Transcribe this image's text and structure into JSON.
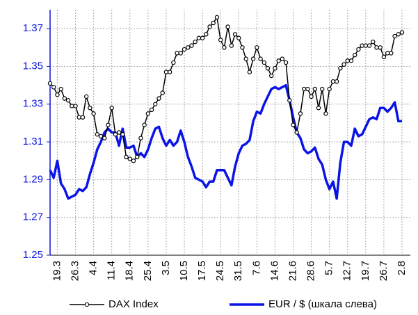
{
  "chart_data": {
    "type": "line",
    "categories": [
      null,
      null,
      "19.3",
      null,
      null,
      null,
      null,
      "26.3",
      null,
      null,
      null,
      null,
      "4.4",
      null,
      null,
      null,
      null,
      "11.4",
      null,
      null,
      null,
      null,
      "18.4",
      null,
      null,
      null,
      null,
      "25.4",
      null,
      null,
      null,
      null,
      "3.5",
      null,
      null,
      null,
      null,
      "10.5",
      null,
      null,
      null,
      null,
      "17.5",
      null,
      null,
      null,
      null,
      "24.5",
      null,
      null,
      null,
      null,
      "31.5",
      null,
      null,
      null,
      null,
      "7.6",
      null,
      null,
      null,
      null,
      "14.6",
      null,
      null,
      null,
      null,
      "21.6",
      null,
      null,
      null,
      null,
      "28.6",
      null,
      null,
      null,
      null,
      "5.7",
      null,
      null,
      null,
      null,
      "12.7",
      null,
      null,
      null,
      null,
      "19.7",
      null,
      null,
      null,
      null,
      "26.7",
      null,
      null,
      null,
      null,
      "2.8"
    ],
    "series": [
      {
        "name": "DAX Index",
        "color": "#000000",
        "markers": true,
        "values": [
          1.341,
          1.339,
          1.335,
          1.338,
          1.333,
          1.332,
          1.329,
          1.329,
          1.323,
          1.323,
          1.334,
          1.328,
          1.325,
          1.314,
          1.313,
          1.312,
          1.319,
          1.328,
          1.314,
          1.315,
          1.314,
          1.302,
          1.301,
          1.3,
          1.302,
          1.312,
          1.319,
          1.325,
          1.327,
          1.33,
          1.333,
          1.336,
          1.347,
          1.347,
          1.352,
          1.357,
          1.357,
          1.359,
          1.36,
          1.361,
          1.363,
          1.365,
          1.365,
          1.367,
          1.371,
          1.373,
          1.376,
          1.364,
          1.36,
          1.371,
          1.361,
          1.367,
          1.365,
          1.36,
          1.354,
          1.347,
          1.354,
          1.36,
          1.354,
          1.352,
          1.349,
          1.345,
          1.349,
          1.353,
          1.354,
          1.352,
          1.332,
          1.319,
          1.315,
          1.325,
          1.338,
          1.338,
          1.334,
          1.338,
          1.328,
          1.338,
          1.325,
          1.338,
          1.342,
          1.342,
          1.349,
          1.351,
          1.353,
          1.353,
          1.356,
          1.359,
          1.361,
          1.361,
          1.361,
          1.363,
          1.36,
          1.36,
          1.355,
          1.357,
          1.357,
          1.366,
          1.367,
          1.368
        ]
      },
      {
        "name": "EUR / $ (шкала слева)",
        "color": "#0a14e6",
        "markers": false,
        "values": [
          1.295,
          1.291,
          1.3,
          1.288,
          1.285,
          1.28,
          1.281,
          1.282,
          1.285,
          1.284,
          1.286,
          1.293,
          1.299,
          1.306,
          1.31,
          1.315,
          1.317,
          1.315,
          1.315,
          1.308,
          1.317,
          1.307,
          1.307,
          1.308,
          1.302,
          1.304,
          1.302,
          1.306,
          1.312,
          1.317,
          1.318,
          1.312,
          1.308,
          1.311,
          1.308,
          1.31,
          1.316,
          1.31,
          1.302,
          1.297,
          1.291,
          1.29,
          1.289,
          1.286,
          1.289,
          1.289,
          1.295,
          1.295,
          1.295,
          1.291,
          1.287,
          1.297,
          1.304,
          1.308,
          1.309,
          1.311,
          1.321,
          1.326,
          1.325,
          1.33,
          1.334,
          1.338,
          1.339,
          1.338,
          1.339,
          1.34,
          1.332,
          1.323,
          1.315,
          1.312,
          1.306,
          1.304,
          1.305,
          1.307,
          1.301,
          1.298,
          1.29,
          1.285,
          1.289,
          1.28,
          1.299,
          1.31,
          1.31,
          1.308,
          1.317,
          1.313,
          1.314,
          1.318,
          1.322,
          1.323,
          1.322,
          1.328,
          1.328,
          1.326,
          1.328,
          1.331,
          1.321,
          1.321
        ]
      }
    ],
    "ylim": [
      1.25,
      1.38
    ],
    "yticks": [
      1.25,
      1.27,
      1.29,
      1.31,
      1.33,
      1.35,
      1.37
    ],
    "grid": true
  }
}
